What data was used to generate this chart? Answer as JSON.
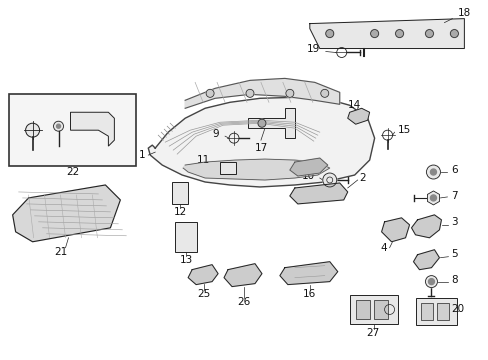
{
  "background_color": "#ffffff",
  "fig_width": 4.89,
  "fig_height": 3.6,
  "dpi": 100,
  "label_fontsize": 7.5,
  "label_color": "#111111"
}
